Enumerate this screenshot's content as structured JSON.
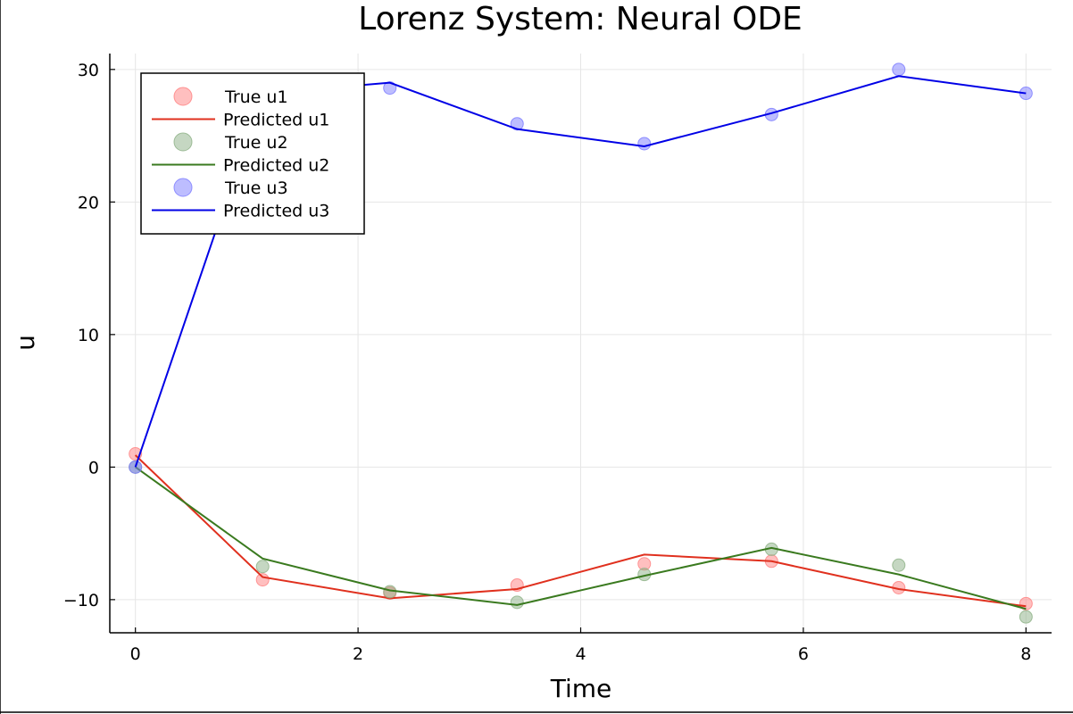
{
  "chart_data": {
    "type": "line",
    "title": "Lorenz System: Neural ODE",
    "xlabel": "Time",
    "ylabel": "u",
    "xlim": [
      -0.23,
      8.23
    ],
    "ylim": [
      -12.5,
      31.2
    ],
    "x_ticks": [
      0,
      2,
      4,
      6,
      8
    ],
    "x_tick_labels": [
      "0",
      "2",
      "4",
      "6",
      "8"
    ],
    "y_ticks": [
      -10,
      0,
      10,
      20,
      30
    ],
    "y_tick_labels": [
      "−10",
      "0",
      "10",
      "20",
      "30"
    ],
    "grid": true,
    "legend_position": "top-left",
    "x": [
      0,
      1.1429,
      2.2857,
      3.4286,
      4.5714,
      5.7143,
      6.8571,
      8.0
    ],
    "series": [
      {
        "name": "True u1",
        "kind": "scatter",
        "color": "#ff8080",
        "values": [
          1.0,
          -8.5,
          -9.5,
          -8.9,
          -7.3,
          -7.1,
          -9.1,
          -10.3
        ]
      },
      {
        "name": "Predicted u1",
        "kind": "line",
        "color": "#e0301e",
        "values": [
          0.9,
          -8.3,
          -9.9,
          -9.2,
          -6.6,
          -7.1,
          -9.2,
          -10.5
        ]
      },
      {
        "name": "True u2",
        "kind": "scatter",
        "color": "#8cb085",
        "values": [
          0.0,
          -7.5,
          -9.4,
          -10.2,
          -8.1,
          -6.2,
          -7.4,
          -11.3
        ]
      },
      {
        "name": "Predicted u2",
        "kind": "line",
        "color": "#3a7a1f",
        "values": [
          0.0,
          -6.9,
          -9.3,
          -10.4,
          -8.2,
          -6.1,
          -8.1,
          -10.7
        ]
      },
      {
        "name": "True u3",
        "kind": "scatter",
        "color": "#7b7bff",
        "values": [
          0.0,
          28.8,
          28.6,
          25.9,
          24.4,
          26.6,
          30.0,
          28.2
        ]
      },
      {
        "name": "Predicted u3",
        "kind": "line",
        "color": "#0000e6",
        "values": [
          0.0,
          28.2,
          29.0,
          25.5,
          24.2,
          26.7,
          29.5,
          28.2
        ]
      }
    ]
  }
}
